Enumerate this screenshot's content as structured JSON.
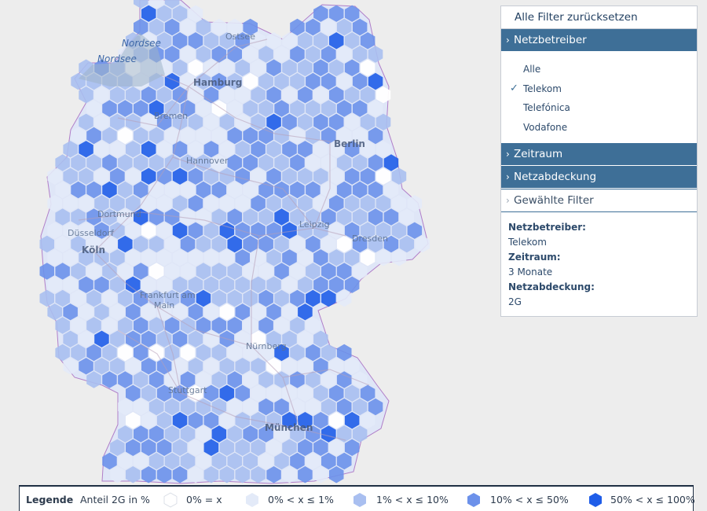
{
  "map": {
    "sea_labels": [
      "Nordsee",
      "Nordsee",
      "Ostsee"
    ],
    "cities": [
      "Hamburg",
      "Bremen",
      "Berlin",
      "Hannover",
      "Dortmund",
      "Düsseldorf",
      "Köln",
      "Leipzig",
      "Dresden",
      "Frankfurt am",
      "Main",
      "Nürnberg",
      "Stuttgart",
      "München"
    ],
    "colors": {
      "cat0": "#ffffff",
      "cat1": "#e3eaf8",
      "cat2": "#a9bff0",
      "cat3": "#6c91ea",
      "cat4": "#1f5de8",
      "background": "#ededed",
      "border": "#b07ec8"
    }
  },
  "filter_panel": {
    "reset_label": "Alle Filter zurücksetzen",
    "sections": {
      "operator": "Netzbetreiber",
      "period": "Zeitraum",
      "coverage": "Netzabdeckung",
      "selected": "Gewählte Filter"
    },
    "operator_options": [
      {
        "label": "Alle",
        "checked": false
      },
      {
        "label": "Telekom",
        "checked": true
      },
      {
        "label": "Telefónica",
        "checked": false
      },
      {
        "label": "Vodafone",
        "checked": false
      }
    ],
    "selected_summary": {
      "operator_key": "Netzbetreiber:",
      "operator_value": "Telekom",
      "period_key": "Zeitraum:",
      "period_value": "3 Monate",
      "coverage_key": "Netzabdeckung:",
      "coverage_value": "2G"
    }
  },
  "legend": {
    "title": "Legende",
    "subtitle": "Anteil 2G in %",
    "items": [
      {
        "label": "0% = x",
        "color": "#ffffff"
      },
      {
        "label": "0% < x ≤ 1%",
        "color": "#e3eaf8"
      },
      {
        "label": "1% < x ≤ 10%",
        "color": "#a9bff0"
      },
      {
        "label": "10% < x ≤ 50%",
        "color": "#6c91ea"
      },
      {
        "label": "50% < x ≤ 100%",
        "color": "#1f5de8"
      }
    ]
  }
}
